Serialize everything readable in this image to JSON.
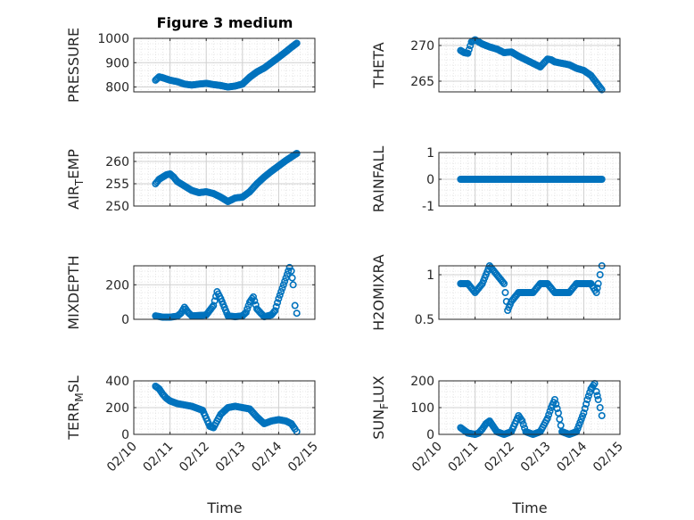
{
  "figure": {
    "title": "Figure 3 medium",
    "marker_color": "#0072BD",
    "axis_color": "#262626",
    "grid_color": "#DFDFDF",
    "x_tick_labels": [
      "02/10",
      "02/11",
      "02/12",
      "02/13",
      "02/14",
      "02/15"
    ],
    "x_label": "Time"
  },
  "chart_data": [
    {
      "type": "scatter",
      "ylabel": "PRESSURE",
      "ylim": [
        780,
        1000
      ],
      "yticks": [
        800,
        900,
        1000
      ],
      "xlim": [
        0,
        5
      ],
      "grid": true,
      "x": [
        0.6,
        0.7,
        0.8,
        0.9,
        1.0,
        1.2,
        1.4,
        1.6,
        1.8,
        2.0,
        2.2,
        2.4,
        2.6,
        2.8,
        3.0,
        3.2,
        3.4,
        3.6,
        3.8,
        4.0,
        4.2,
        4.35,
        4.5
      ],
      "y": [
        828,
        842,
        838,
        833,
        828,
        822,
        812,
        808,
        812,
        815,
        810,
        806,
        800,
        804,
        812,
        840,
        862,
        878,
        900,
        922,
        945,
        963,
        980
      ]
    },
    {
      "type": "scatter",
      "ylabel": "THETA",
      "ylim": [
        263.5,
        271
      ],
      "yticks": [
        265,
        270
      ],
      "xlim": [
        0,
        5
      ],
      "grid": true,
      "x": [
        0.6,
        0.7,
        0.8,
        0.9,
        1.0,
        1.2,
        1.4,
        1.6,
        1.8,
        2.0,
        2.2,
        2.4,
        2.6,
        2.8,
        3.0,
        3.1,
        3.2,
        3.4,
        3.6,
        3.8,
        4.0,
        4.2,
        4.35,
        4.5
      ],
      "y": [
        269.3,
        269.0,
        268.9,
        270.5,
        270.8,
        270.2,
        269.8,
        269.5,
        269.0,
        269.1,
        268.5,
        268.0,
        267.5,
        267.0,
        268.1,
        268.0,
        267.7,
        267.5,
        267.3,
        266.8,
        266.5,
        265.8,
        264.8,
        263.8
      ]
    },
    {
      "type": "scatter",
      "ylabel": "AIR_TEMP",
      "ylim": [
        250,
        262
      ],
      "yticks": [
        250,
        255,
        260
      ],
      "xlim": [
        0,
        5
      ],
      "grid": true,
      "x": [
        0.6,
        0.7,
        0.8,
        0.9,
        1.0,
        1.1,
        1.2,
        1.4,
        1.6,
        1.8,
        2.0,
        2.2,
        2.4,
        2.6,
        2.8,
        3.0,
        3.2,
        3.4,
        3.6,
        3.8,
        4.0,
        4.2,
        4.35,
        4.5
      ],
      "y": [
        255.0,
        256.0,
        256.5,
        257.0,
        257.2,
        256.5,
        255.5,
        254.5,
        253.5,
        253.0,
        253.2,
        252.8,
        252.0,
        251.0,
        251.8,
        252.0,
        253.2,
        255.0,
        256.5,
        257.8,
        259.0,
        260.2,
        261.0,
        261.8
      ]
    },
    {
      "type": "scatter",
      "ylabel": "RAINFALL",
      "ylim": [
        -1,
        1
      ],
      "yticks": [
        -1,
        0,
        1
      ],
      "xlim": [
        0,
        5
      ],
      "grid": true,
      "x": [
        0.6,
        0.8,
        1.0,
        1.2,
        1.4,
        1.6,
        1.8,
        2.0,
        2.2,
        2.4,
        2.6,
        2.8,
        3.0,
        3.2,
        3.4,
        3.6,
        3.8,
        4.0,
        4.2,
        4.4,
        4.5
      ],
      "y": [
        0,
        0,
        0,
        0,
        0,
        0,
        0,
        0,
        0,
        0,
        0,
        0,
        0,
        0,
        0,
        0,
        0,
        0,
        0,
        0,
        0
      ]
    },
    {
      "type": "scatter",
      "ylabel": "MIXDEPTH",
      "ylim": [
        0,
        310
      ],
      "yticks": [
        0,
        200
      ],
      "xlim": [
        0,
        5
      ],
      "grid": true,
      "x": [
        0.6,
        0.8,
        1.0,
        1.2,
        1.3,
        1.4,
        1.5,
        1.6,
        1.8,
        2.0,
        2.2,
        2.3,
        2.4,
        2.6,
        2.8,
        3.0,
        3.1,
        3.2,
        3.3,
        3.4,
        3.6,
        3.8,
        3.9,
        4.0,
        4.1,
        4.2,
        4.3,
        4.35,
        4.4,
        4.45,
        4.5
      ],
      "y": [
        20,
        12,
        12,
        18,
        35,
        70,
        40,
        20,
        22,
        25,
        80,
        160,
        120,
        20,
        15,
        20,
        40,
        100,
        130,
        60,
        15,
        25,
        50,
        120,
        180,
        240,
        300,
        280,
        200,
        80,
        35
      ]
    },
    {
      "type": "scatter",
      "ylabel": "H2OMIXRA",
      "ylim": [
        0.5,
        1.1
      ],
      "yticks": [
        0.5,
        1
      ],
      "xlim": [
        0,
        5
      ],
      "grid": true,
      "x": [
        0.6,
        0.8,
        1.0,
        1.2,
        1.4,
        1.6,
        1.8,
        1.9,
        2.0,
        2.2,
        2.4,
        2.6,
        2.8,
        3.0,
        3.2,
        3.4,
        3.6,
        3.8,
        4.0,
        4.2,
        4.35,
        4.4,
        4.45,
        4.5
      ],
      "y": [
        0.9,
        0.9,
        0.8,
        0.9,
        1.1,
        1.0,
        0.9,
        0.6,
        0.7,
        0.8,
        0.8,
        0.8,
        0.9,
        0.9,
        0.8,
        0.8,
        0.8,
        0.9,
        0.9,
        0.9,
        0.8,
        0.9,
        1.0,
        1.1
      ]
    },
    {
      "type": "scatter",
      "ylabel": "TERR_MSL",
      "ylim": [
        0,
        400
      ],
      "yticks": [
        0,
        200,
        400
      ],
      "xlim": [
        0,
        5
      ],
      "grid": true,
      "x": [
        0.6,
        0.7,
        0.8,
        0.9,
        1.0,
        1.2,
        1.4,
        1.6,
        1.8,
        1.9,
        2.0,
        2.1,
        2.2,
        2.4,
        2.6,
        2.8,
        3.0,
        3.2,
        3.4,
        3.6,
        3.8,
        4.0,
        4.2,
        4.35,
        4.45,
        4.5
      ],
      "y": [
        360,
        340,
        300,
        270,
        250,
        230,
        220,
        210,
        190,
        180,
        120,
        60,
        50,
        150,
        200,
        210,
        200,
        190,
        130,
        80,
        100,
        110,
        100,
        80,
        40,
        20
      ]
    },
    {
      "type": "scatter",
      "ylabel": "SUN_FLUX",
      "ylim": [
        0,
        200
      ],
      "yticks": [
        0,
        100,
        200
      ],
      "xlim": [
        0,
        5
      ],
      "grid": true,
      "x": [
        0.6,
        0.8,
        1.0,
        1.1,
        1.2,
        1.3,
        1.4,
        1.5,
        1.6,
        1.8,
        2.0,
        2.1,
        2.2,
        2.3,
        2.4,
        2.6,
        2.8,
        3.0,
        3.1,
        3.2,
        3.3,
        3.4,
        3.6,
        3.8,
        4.0,
        4.1,
        4.2,
        4.3,
        4.35,
        4.4,
        4.45,
        4.5
      ],
      "y": [
        25,
        5,
        0,
        5,
        20,
        40,
        50,
        30,
        10,
        0,
        10,
        40,
        70,
        50,
        10,
        0,
        10,
        60,
        100,
        130,
        80,
        10,
        0,
        10,
        80,
        130,
        170,
        190,
        160,
        130,
        100,
        70
      ]
    }
  ]
}
